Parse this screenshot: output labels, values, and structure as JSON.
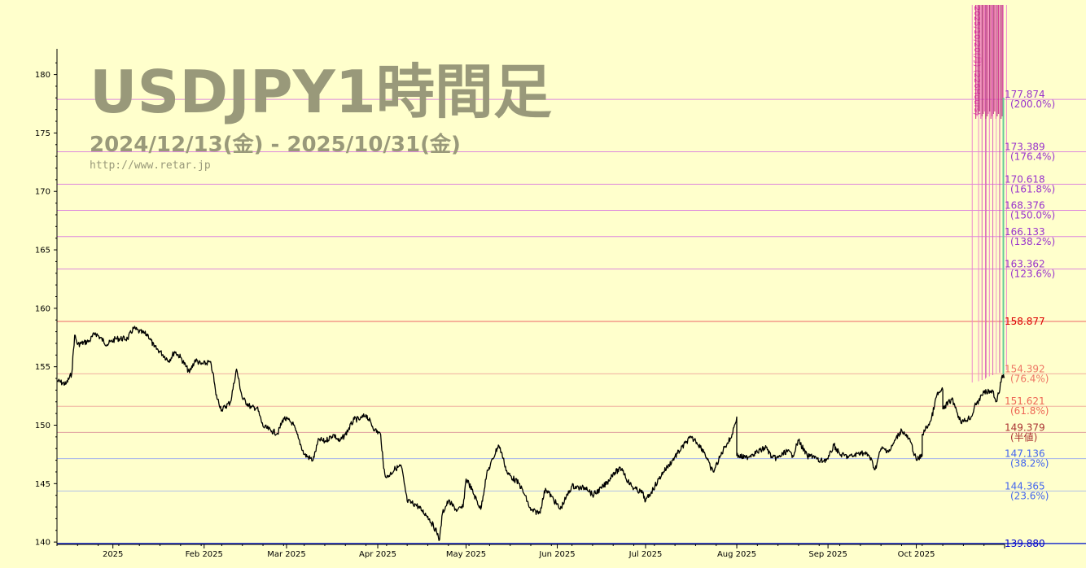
{
  "chart_data": {
    "type": "line",
    "title": "USDJPY1時間足",
    "subtitle": "2024/12/13(金) - 2025/10/31(金)",
    "site": "http://www.retar.jp",
    "ylim": [
      139.8,
      182.2
    ],
    "y_ticks": [
      {
        "v": 140,
        "label": "140"
      },
      {
        "v": 145,
        "label": "145"
      },
      {
        "v": 150,
        "label": "150"
      },
      {
        "v": 155,
        "label": "155"
      },
      {
        "v": 160,
        "label": "160"
      },
      {
        "v": 165,
        "label": "165"
      },
      {
        "v": 170,
        "label": "170"
      },
      {
        "v": 175,
        "label": "175"
      },
      {
        "v": 180,
        "label": "180"
      }
    ],
    "xlim": [
      "2024-12-13",
      "2025-10-31"
    ],
    "x_ticks": [
      {
        "date": "2025-01-01",
        "label": "2025"
      },
      {
        "date": "2025-02-01",
        "label": "Feb 2025"
      },
      {
        "date": "2025-03-01",
        "label": "Mar 2025"
      },
      {
        "date": "2025-04-01",
        "label": "Apr 2025"
      },
      {
        "date": "2025-05-01",
        "label": "May 2025"
      },
      {
        "date": "2025-06-01",
        "label": "Jun 2025"
      },
      {
        "date": "2025-07-01",
        "label": "Jul 2025"
      },
      {
        "date": "2025-08-01",
        "label": "Aug 2025"
      },
      {
        "date": "2025-09-01",
        "label": "Sep 2025"
      },
      {
        "date": "2025-10-01",
        "label": "Oct 2025"
      }
    ],
    "levels": [
      {
        "value": 177.874,
        "label": "177.874",
        "pct": "(200.0%)",
        "color": "#9933cc",
        "line": "#dd88dd"
      },
      {
        "value": 173.389,
        "label": "173.389",
        "pct": "(176.4%)",
        "color": "#9933cc",
        "line": "#dd88dd"
      },
      {
        "value": 170.618,
        "label": "170.618",
        "pct": "(161.8%)",
        "color": "#9933cc",
        "line": "#dd88dd"
      },
      {
        "value": 168.376,
        "label": "168.376",
        "pct": "(150.0%)",
        "color": "#9933cc",
        "line": "#dd88dd"
      },
      {
        "value": 166.133,
        "label": "166.133",
        "pct": "(138.2%)",
        "color": "#9933cc",
        "line": "#dd88dd"
      },
      {
        "value": 163.362,
        "label": "163.362",
        "pct": "(123.6%)",
        "color": "#9933cc",
        "line": "#dd88dd"
      },
      {
        "value": 158.877,
        "label": "158.877",
        "pct": "",
        "color": "#dd0000",
        "line": "#ee6666"
      },
      {
        "value": 154.392,
        "label": "154.392",
        "pct": "(76.4%)",
        "color": "#ee7766",
        "line": "#f0b0a0"
      },
      {
        "value": 151.621,
        "label": "151.621",
        "pct": "(61.8%)",
        "color": "#ee6655",
        "line": "#f0b0a0"
      },
      {
        "value": 149.379,
        "label": "149.379",
        "pct": "(半値)",
        "color": "#aa3333",
        "line": "#e0a0a0"
      },
      {
        "value": 147.136,
        "label": "147.136",
        "pct": "(38.2%)",
        "color": "#4466ee",
        "line": "#a0b0ee"
      },
      {
        "value": 144.365,
        "label": "144.365",
        "pct": "(23.6%)",
        "color": "#4466ee",
        "line": "#b0c0e8"
      },
      {
        "value": 139.88,
        "label": "139.880",
        "pct": "",
        "color": "#0000cc",
        "line": "#2233cc"
      }
    ],
    "vertical_markers": [
      {
        "date": "2025-10-20",
        "label": "2025/10/20(月) (226Hours)"
      },
      {
        "date": "2025-10-22",
        "label": ""
      },
      {
        "date": "2025-10-23",
        "label": ""
      },
      {
        "date": "2025-10-24",
        "label": ""
      },
      {
        "date": "2025-10-24",
        "label": ""
      },
      {
        "date": "2025-10-25",
        "label": ""
      },
      {
        "date": "2025-10-26",
        "label": ""
      },
      {
        "date": "2025-10-27",
        "label": ""
      },
      {
        "date": "2025-10-28",
        "label": ""
      },
      {
        "date": "2025-10-29",
        "label": ""
      },
      {
        "date": "2025-10-30",
        "label": ""
      }
    ],
    "series": [
      {
        "color": "#000000",
        "points": [
          [
            "2024-12-13",
            153.8
          ],
          [
            "2024-12-16",
            153.5
          ],
          [
            "2024-12-18",
            154.4
          ],
          [
            "2024-12-19",
            157.7
          ],
          [
            "2024-12-20",
            156.9
          ],
          [
            "2024-12-24",
            157.2
          ],
          [
            "2024-12-26",
            157.9
          ],
          [
            "2024-12-30",
            156.9
          ],
          [
            "2025-01-02",
            157.4
          ],
          [
            "2025-01-06",
            157.4
          ],
          [
            "2025-01-08",
            158.3
          ],
          [
            "2025-01-10",
            158.0
          ],
          [
            "2025-01-13",
            157.7
          ],
          [
            "2025-01-15",
            156.7
          ],
          [
            "2025-01-17",
            156.3
          ],
          [
            "2025-01-20",
            155.5
          ],
          [
            "2025-01-22",
            156.3
          ],
          [
            "2025-01-24",
            155.8
          ],
          [
            "2025-01-27",
            154.5
          ],
          [
            "2025-01-29",
            155.6
          ],
          [
            "2025-01-31",
            155.2
          ],
          [
            "2025-02-03",
            155.4
          ],
          [
            "2025-02-04",
            154.5
          ],
          [
            "2025-02-05",
            152.6
          ],
          [
            "2025-02-07",
            151.3
          ],
          [
            "2025-02-10",
            152.0
          ],
          [
            "2025-02-12",
            154.8
          ],
          [
            "2025-02-14",
            152.3
          ],
          [
            "2025-02-17",
            151.5
          ],
          [
            "2025-02-19",
            151.5
          ],
          [
            "2025-02-21",
            149.9
          ],
          [
            "2025-02-24",
            149.5
          ],
          [
            "2025-02-26",
            149.3
          ],
          [
            "2025-02-28",
            150.6
          ],
          [
            "2025-03-03",
            150.2
          ],
          [
            "2025-03-05",
            148.9
          ],
          [
            "2025-03-07",
            147.5
          ],
          [
            "2025-03-10",
            147.0
          ],
          [
            "2025-03-12",
            148.8
          ],
          [
            "2025-03-14",
            148.6
          ],
          [
            "2025-03-17",
            149.2
          ],
          [
            "2025-03-19",
            148.6
          ],
          [
            "2025-03-21",
            149.2
          ],
          [
            "2025-03-24",
            150.5
          ],
          [
            "2025-03-26",
            150.5
          ],
          [
            "2025-03-28",
            150.9
          ],
          [
            "2025-03-31",
            149.6
          ],
          [
            "2025-04-02",
            149.2
          ],
          [
            "2025-04-03",
            146.3
          ],
          [
            "2025-04-04",
            145.5
          ],
          [
            "2025-04-07",
            146.3
          ],
          [
            "2025-04-09",
            146.5
          ],
          [
            "2025-04-10",
            145.0
          ],
          [
            "2025-04-11",
            143.5
          ],
          [
            "2025-04-14",
            143.2
          ],
          [
            "2025-04-16",
            142.7
          ],
          [
            "2025-04-18",
            142.2
          ],
          [
            "2025-04-21",
            140.9
          ],
          [
            "2025-04-22",
            140.2
          ],
          [
            "2025-04-23",
            142.5
          ],
          [
            "2025-04-25",
            143.5
          ],
          [
            "2025-04-28",
            142.7
          ],
          [
            "2025-04-30",
            143.0
          ],
          [
            "2025-05-01",
            145.4
          ],
          [
            "2025-05-02",
            145.0
          ],
          [
            "2025-05-06",
            142.8
          ],
          [
            "2025-05-08",
            145.8
          ],
          [
            "2025-05-12",
            148.3
          ],
          [
            "2025-05-13",
            147.7
          ],
          [
            "2025-05-15",
            145.9
          ],
          [
            "2025-05-19",
            145.0
          ],
          [
            "2025-05-21",
            144.0
          ],
          [
            "2025-05-23",
            142.7
          ],
          [
            "2025-05-26",
            142.5
          ],
          [
            "2025-05-28",
            144.6
          ],
          [
            "2025-05-30",
            143.9
          ],
          [
            "2025-06-02",
            142.8
          ],
          [
            "2025-06-04",
            143.8
          ],
          [
            "2025-06-06",
            144.8
          ],
          [
            "2025-06-09",
            144.6
          ],
          [
            "2025-06-11",
            144.7
          ],
          [
            "2025-06-13",
            144.0
          ],
          [
            "2025-06-16",
            144.6
          ],
          [
            "2025-06-18",
            145.1
          ],
          [
            "2025-06-20",
            145.9
          ],
          [
            "2025-06-23",
            146.3
          ],
          [
            "2025-06-25",
            145.2
          ],
          [
            "2025-06-27",
            144.6
          ],
          [
            "2025-06-30",
            144.2
          ],
          [
            "2025-07-01",
            143.5
          ],
          [
            "2025-07-03",
            144.3
          ],
          [
            "2025-07-07",
            146.0
          ],
          [
            "2025-07-09",
            146.6
          ],
          [
            "2025-07-11",
            147.3
          ],
          [
            "2025-07-15",
            148.6
          ],
          [
            "2025-07-16",
            148.9
          ],
          [
            "2025-07-18",
            148.7
          ],
          [
            "2025-07-21",
            147.7
          ],
          [
            "2025-07-23",
            146.4
          ],
          [
            "2025-07-24",
            146.0
          ],
          [
            "2025-07-28",
            148.2
          ],
          [
            "2025-07-30",
            148.9
          ],
          [
            "2025-07-31",
            149.8
          ],
          [
            "2025-08-01",
            150.7
          ],
          [
            "2025-08-01",
            147.4
          ],
          [
            "2025-08-04",
            147.2
          ],
          [
            "2025-08-06",
            147.5
          ],
          [
            "2025-08-08",
            147.7
          ],
          [
            "2025-08-11",
            148.1
          ],
          [
            "2025-08-13",
            147.2
          ],
          [
            "2025-08-15",
            147.2
          ],
          [
            "2025-08-18",
            147.8
          ],
          [
            "2025-08-20",
            147.4
          ],
          [
            "2025-08-22",
            148.7
          ],
          [
            "2025-08-25",
            147.3
          ],
          [
            "2025-08-27",
            147.4
          ],
          [
            "2025-08-29",
            146.9
          ],
          [
            "2025-09-01",
            147.1
          ],
          [
            "2025-09-03",
            148.3
          ],
          [
            "2025-09-05",
            147.5
          ],
          [
            "2025-09-08",
            147.3
          ],
          [
            "2025-09-10",
            147.4
          ],
          [
            "2025-09-12",
            147.7
          ],
          [
            "2025-09-15",
            147.4
          ],
          [
            "2025-09-17",
            146.2
          ],
          [
            "2025-09-19",
            148.0
          ],
          [
            "2025-09-22",
            147.8
          ],
          [
            "2025-09-24",
            148.8
          ],
          [
            "2025-09-26",
            149.6
          ],
          [
            "2025-09-29",
            148.6
          ],
          [
            "2025-10-01",
            147.0
          ],
          [
            "2025-10-03",
            147.4
          ],
          [
            "2025-10-03",
            149.2
          ],
          [
            "2025-10-06",
            150.4
          ],
          [
            "2025-10-08",
            152.6
          ],
          [
            "2025-10-10",
            153.0
          ],
          [
            "2025-10-10",
            151.4
          ],
          [
            "2025-10-13",
            152.2
          ],
          [
            "2025-10-14",
            151.8
          ],
          [
            "2025-10-15",
            151.0
          ],
          [
            "2025-10-16",
            150.4
          ],
          [
            "2025-10-17",
            150.3
          ],
          [
            "2025-10-20",
            150.8
          ],
          [
            "2025-10-21",
            151.9
          ],
          [
            "2025-10-22",
            151.8
          ],
          [
            "2025-10-23",
            152.6
          ],
          [
            "2025-10-24",
            152.8
          ],
          [
            "2025-10-27",
            152.9
          ],
          [
            "2025-10-28",
            152.0
          ],
          [
            "2025-10-29",
            152.7
          ],
          [
            "2025-10-30",
            154.1
          ],
          [
            "2025-10-31",
            154.1
          ]
        ]
      }
    ]
  }
}
